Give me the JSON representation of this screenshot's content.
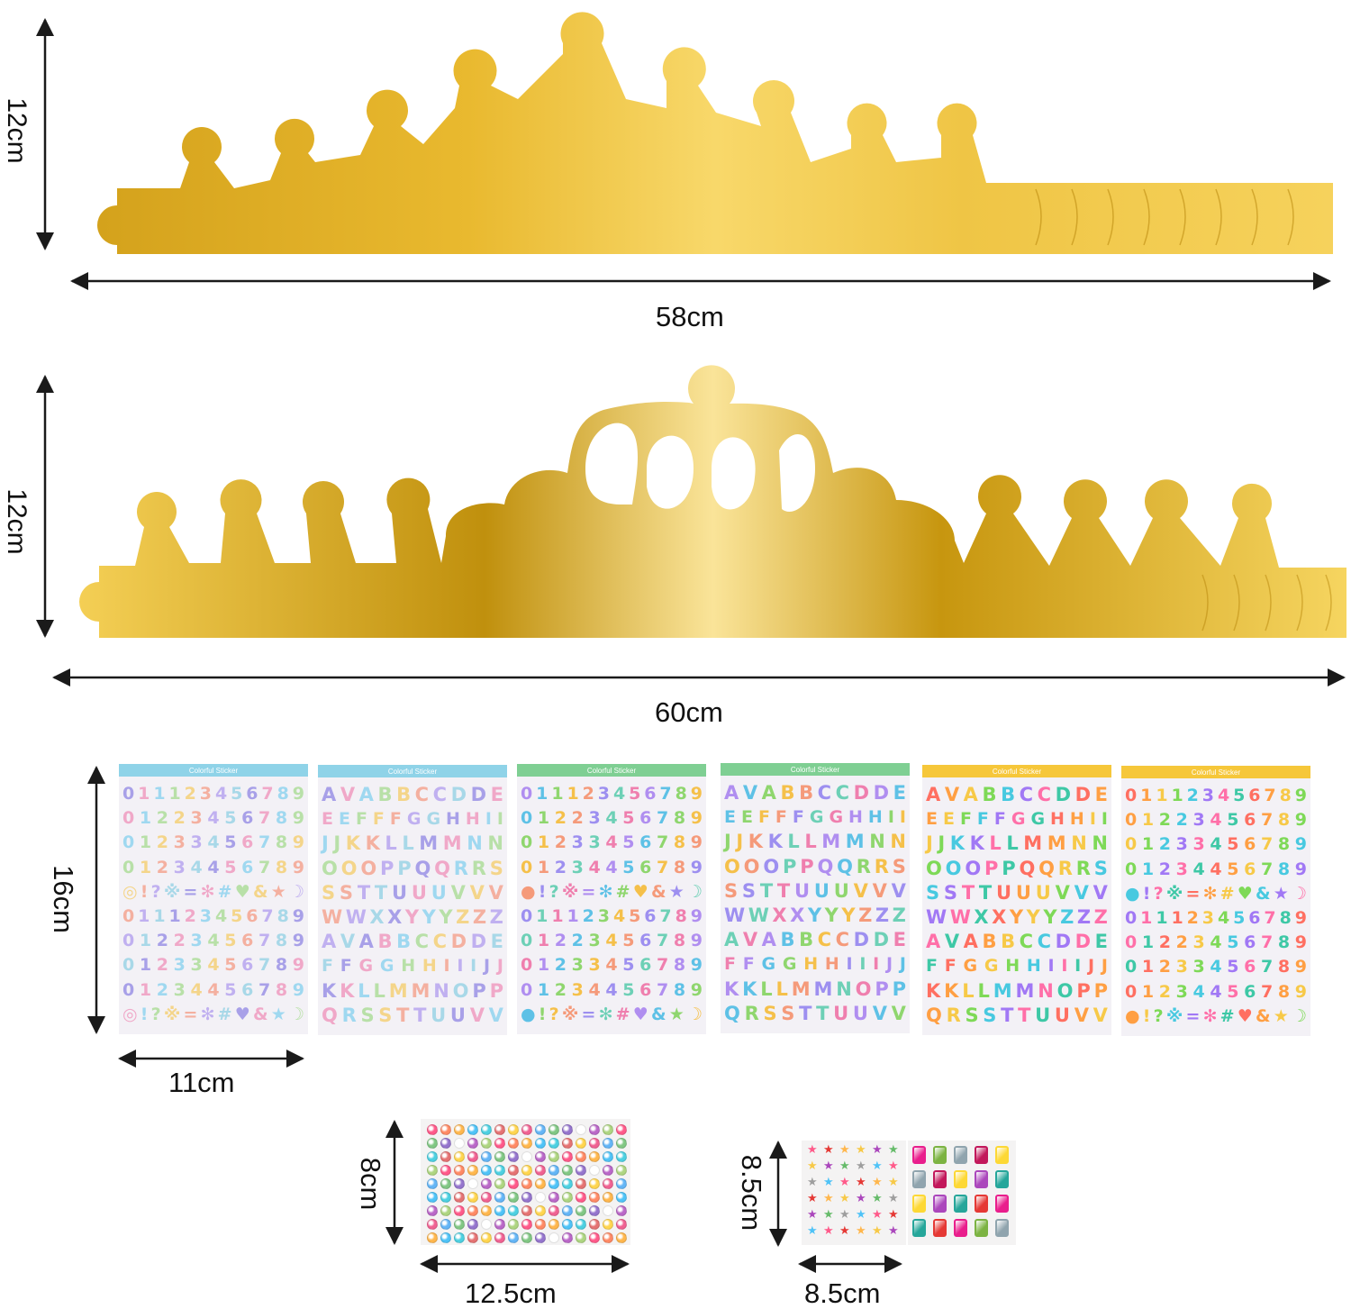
{
  "colors": {
    "gold_dark": "#c9950e",
    "gold_light": "#f7d05a",
    "gold_shine": "#fbe08e",
    "arrow": "#1a1a1a"
  },
  "crown1": {
    "width_label": "58cm",
    "height_label": "12cm"
  },
  "crown2": {
    "width_label": "60cm",
    "height_label": "12cm"
  },
  "letter_stickers": {
    "width_label": "11cm",
    "height_label": "16cm",
    "sheets": [
      {
        "header_color": "#8fd3e8",
        "header_text": "Colorful Sticker",
        "scheme": "pastel",
        "rows": [
          "01112345678 9",
          "0122345678 9",
          "01233456789",
          "01234456789",
          "◎!?※=✻#♥&★☽",
          "01112345678 9",
          "0122345678 9",
          "01233456789",
          "01234456789",
          "◎!?※=✻#♥&★☽"
        ]
      },
      {
        "header_color": "#8fd3e8",
        "header_text": "Colorful Sticker",
        "scheme": "pastel",
        "rows": [
          "AVABBCCDDE",
          "EEFFFGGHHII",
          "JJKKLLMMNN",
          "OOOPPQQRRS",
          "SSTTUUUVVV",
          "WWXXYYYZZZ",
          "AVABBCCDDE",
          "FFGGHHIIIJJ",
          "KKLLMMNOPP",
          "QRSSTTUUVV"
        ]
      },
      {
        "header_color": "#7fcf93",
        "header_text": "Colorful Sticker",
        "scheme": "mid",
        "rows": [
          "01112345678 9",
          "0122345678 9",
          "01233456789",
          "01234456789",
          "●!?※=✻#♥&★☽",
          "01112345678 9",
          "0122345678 9",
          "01233456789",
          "01234456789",
          "●!?※=✻#♥&★☽"
        ]
      },
      {
        "header_color": "#7fcf93",
        "header_text": "Colorful Sticker",
        "scheme": "mid",
        "rows": [
          "AVABBCCDDE",
          "EEFFFGGHHII",
          "JJKKLLMMNN",
          "OOOPPQQRRS",
          "SSTTUUUVVV",
          "WWXXYYYZZZ",
          "AVABBCCDDE",
          "FFGGHHIIIJJ",
          "KKLLMMNOPP",
          "QRSSTTUUVV"
        ]
      },
      {
        "header_color": "#f6c73a",
        "header_text": "Colorful Sticker",
        "scheme": "bright",
        "rows": [
          "AVABBCCDDE",
          "EEFFFGGHHII",
          "JJKKLLMMNN",
          "OOOPPQQRRS",
          "SSTTUUUVVV",
          "WWXXYYYZZZ",
          "AVABBCCDDE",
          "FFGGHHIIIJJ",
          "KKLLMMNOPP",
          "QRSSTTUUVV"
        ]
      },
      {
        "header_color": "#f6c73a",
        "header_text": "Colorful Sticker",
        "scheme": "bright",
        "rows": [
          "01112345678 9",
          "0122345678 9",
          "01233456789",
          "01234456789",
          "●!?※=✻#♥&★☽",
          "01112345678 9",
          "0122345678 9",
          "01233456789",
          "01234456789",
          "●!?※=✻#♥&★☽"
        ]
      }
    ]
  },
  "gem_sticker_dots": {
    "width_label": "12.5cm",
    "height_label": "8cm"
  },
  "gem_sticker_shapes": {
    "width_label": "8.5cm",
    "height_label": "8.5cm"
  },
  "palettes": {
    "pastel": [
      "#a8a0e8",
      "#f0a8c8",
      "#9fd8f0",
      "#b8e0a8",
      "#f4d58a",
      "#f4b0a0",
      "#c0b0f0",
      "#a8d8e8"
    ],
    "mid": [
      "#b08ef0",
      "#5ec1e6",
      "#8fd66e",
      "#f5c04a",
      "#f59a7a",
      "#9d8ff0",
      "#6dd0b6",
      "#ef7fae"
    ],
    "bright": [
      "#ff6f61",
      "#ff9f43",
      "#f7c948",
      "#7ed957",
      "#48c9e0",
      "#a178f5",
      "#ff6fa8",
      "#3ec8a6"
    ]
  }
}
